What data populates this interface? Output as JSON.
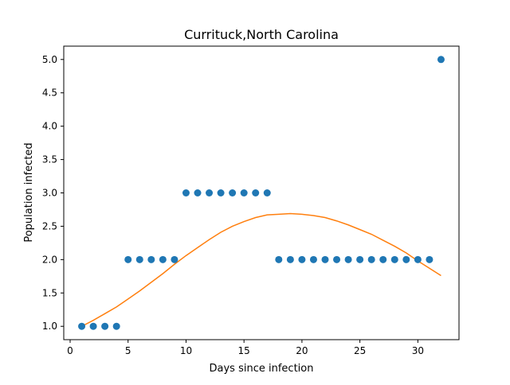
{
  "chart_data": {
    "type": "scatter",
    "title": "Currituck,North Carolina",
    "xlabel": "Days since infection",
    "ylabel": "Population infected",
    "xlim": [
      -0.55,
      33.55
    ],
    "ylim": [
      0.8,
      5.2
    ],
    "xticks": [
      0,
      5,
      10,
      15,
      20,
      25,
      30
    ],
    "yticks": [
      1.0,
      1.5,
      2.0,
      2.5,
      3.0,
      3.5,
      4.0,
      4.5,
      5.0
    ],
    "xtick_labels": [
      "0",
      "5",
      "10",
      "15",
      "20",
      "25",
      "30"
    ],
    "ytick_labels": [
      "1.0",
      "1.5",
      "2.0",
      "2.5",
      "3.0",
      "3.5",
      "4.0",
      "4.5",
      "5.0"
    ],
    "grid": false,
    "series": [
      {
        "kind": "scatter",
        "color": "#1f77b4",
        "x": [
          1,
          2,
          3,
          4,
          5,
          6,
          7,
          8,
          9,
          10,
          11,
          12,
          13,
          14,
          15,
          16,
          17,
          18,
          19,
          20,
          21,
          22,
          23,
          24,
          25,
          26,
          27,
          28,
          29,
          30,
          31,
          32
        ],
        "y": [
          1,
          1,
          1,
          1,
          2,
          2,
          2,
          2,
          2,
          3,
          3,
          3,
          3,
          3,
          3,
          3,
          3,
          2,
          2,
          2,
          2,
          2,
          2,
          2,
          2,
          2,
          2,
          2,
          2,
          2,
          2,
          5
        ]
      },
      {
        "kind": "line",
        "color": "#ff7f0e",
        "x": [
          1,
          2,
          3,
          4,
          5,
          6,
          7,
          8,
          9,
          10,
          11,
          12,
          13,
          14,
          15,
          16,
          17,
          18,
          19,
          20,
          21,
          22,
          23,
          24,
          25,
          26,
          27,
          28,
          29,
          30,
          31,
          32
        ],
        "y": [
          1.0,
          1.09,
          1.19,
          1.29,
          1.41,
          1.53,
          1.66,
          1.79,
          1.93,
          2.06,
          2.18,
          2.3,
          2.41,
          2.5,
          2.57,
          2.63,
          2.67,
          2.68,
          2.69,
          2.68,
          2.66,
          2.63,
          2.58,
          2.52,
          2.45,
          2.38,
          2.29,
          2.2,
          2.1,
          1.98,
          1.87,
          1.76
        ]
      }
    ]
  }
}
